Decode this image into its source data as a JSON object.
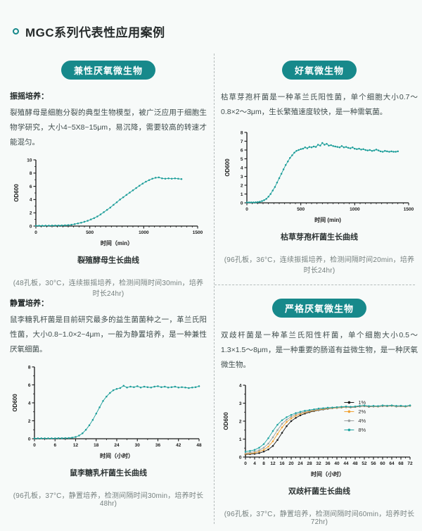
{
  "header": {
    "title": "MGC系列代表性应用案例"
  },
  "colors": {
    "accent": "#17898b",
    "curve_teal": "#1b9d99",
    "series_black": "#1a1a1a",
    "series_orange": "#f0a132",
    "series_gray": "#9aa0a0"
  },
  "quadrants": {
    "q1": {
      "badge": "兼性厌氧微生物",
      "method_label": "振摇培养：",
      "description": "裂殖酵母是细胞分裂的典型生物模型，被广泛应用于细胞生物学研究，大小4~5X8~15μm，易沉降，需要较高的转速才能混匀。",
      "chart_title": "裂殖酵母生长曲线",
      "caption": "(48孔板，30°C，连续振摇培养，检测间隔时间30min，培养时长24hr)"
    },
    "q2": {
      "badge": "好氧微生物",
      "description": "枯草芽孢杆菌是一种革兰氏阳性菌，单个细胞大小0.7～0.8×2～3μm，生长繁殖速度较快，是一种需氧菌。",
      "chart_title": "枯草芽孢杆菌生长曲线",
      "caption": "(96孔板，36°C，连续振摇培养，检测间隔时间20min，培养时长24hr)"
    },
    "q3": {
      "method_label": "静置培养：",
      "description": "鼠李糖乳杆菌是目前研究最多的益生菌菌种之一，革兰氏阳性菌，大小0.8~1.0×2~4μm，一般为静置培养，是一种兼性厌氧细菌。",
      "chart_title": "鼠李糖乳杆菌生长曲线",
      "caption": "(96孔板，37°C，静置培养，检测间隔时间30min，培养时长48hr)"
    },
    "q4": {
      "badge": "严格厌氧微生物",
      "description": "双歧杆菌是一种革兰氏阳性杆菌，单个细胞大小0.5～1.3×1.5～8μm，是一种重要的肠道有益微生物，是一种厌氧微生物。",
      "chart_title": "双歧杆菌生长曲线",
      "caption": "(96孔板，37°C，静置培养，检测间隔时间60min，培养时长72hr)"
    }
  },
  "chart_data": [
    {
      "type": "line",
      "title": "裂殖酵母生长曲线",
      "xlabel": "时间（min）",
      "ylabel": "OD600",
      "xlim": [
        0,
        1500
      ],
      "ylim": [
        0,
        10
      ],
      "xticks": [
        0,
        500,
        1000,
        1500
      ],
      "yticks": [
        0,
        2,
        4,
        6,
        8,
        10
      ],
      "xminor": 50,
      "yminor": 1,
      "x": [
        0,
        30,
        60,
        90,
        120,
        150,
        180,
        210,
        240,
        270,
        300,
        330,
        360,
        390,
        420,
        450,
        480,
        510,
        540,
        570,
        600,
        630,
        660,
        690,
        720,
        750,
        780,
        810,
        840,
        870,
        900,
        930,
        960,
        990,
        1020,
        1050,
        1080,
        1110,
        1140,
        1170,
        1200,
        1230,
        1260,
        1290,
        1320,
        1350
      ],
      "series": [
        {
          "name": "OD600",
          "color": "#1b9d99",
          "values": [
            0.05,
            0.05,
            0.05,
            0.06,
            0.06,
            0.07,
            0.08,
            0.09,
            0.1,
            0.12,
            0.15,
            0.2,
            0.3,
            0.4,
            0.5,
            0.65,
            0.8,
            1.0,
            1.2,
            1.45,
            1.75,
            2.1,
            2.45,
            2.8,
            3.2,
            3.6,
            4.0,
            4.35,
            4.7,
            5.05,
            5.4,
            5.75,
            6.1,
            6.4,
            6.7,
            6.95,
            7.15,
            7.3,
            7.35,
            7.2,
            7.15,
            7.2,
            7.15,
            7.2,
            7.15,
            7.1
          ]
        }
      ]
    },
    {
      "type": "line",
      "title": "枯草芽孢杆菌生长曲线",
      "xlabel": "时间 (min)",
      "ylabel": "OD600",
      "xlim": [
        0,
        1500
      ],
      "ylim": [
        0,
        8
      ],
      "xticks": [
        0,
        500,
        1000,
        1500
      ],
      "yticks": [
        0,
        1,
        2,
        3,
        4,
        5,
        6,
        7,
        8
      ],
      "xminor": 50,
      "yminor": 0,
      "x": [
        0,
        20,
        40,
        60,
        80,
        100,
        120,
        140,
        160,
        180,
        200,
        220,
        240,
        260,
        280,
        300,
        320,
        340,
        360,
        380,
        400,
        420,
        440,
        460,
        480,
        500,
        520,
        540,
        560,
        580,
        600,
        620,
        640,
        660,
        680,
        700,
        720,
        740,
        760,
        780,
        800,
        820,
        840,
        860,
        880,
        900,
        920,
        940,
        960,
        980,
        1000,
        1020,
        1040,
        1060,
        1080,
        1100,
        1120,
        1140,
        1160,
        1180,
        1200,
        1220,
        1240,
        1260,
        1280,
        1300,
        1320,
        1340,
        1360,
        1380,
        1400
      ],
      "series": [
        {
          "name": "OD600",
          "color": "#1b9d99",
          "values": [
            0.05,
            0.05,
            0.05,
            0.05,
            0.06,
            0.08,
            0.12,
            0.2,
            0.3,
            0.45,
            0.7,
            1.0,
            1.4,
            1.8,
            2.3,
            2.8,
            3.3,
            3.8,
            4.3,
            4.7,
            5.1,
            5.4,
            5.7,
            5.9,
            6.0,
            6.1,
            6.15,
            6.3,
            6.2,
            6.35,
            6.3,
            6.4,
            6.35,
            6.6,
            6.5,
            6.8,
            6.6,
            6.7,
            6.5,
            6.55,
            6.45,
            6.4,
            6.35,
            6.3,
            6.45,
            6.3,
            6.35,
            6.25,
            6.2,
            6.3,
            6.15,
            6.1,
            6.15,
            6.05,
            6.1,
            6.0,
            5.95,
            6.0,
            5.9,
            5.95,
            6.05,
            5.95,
            5.85,
            5.8,
            5.9,
            5.85,
            5.8,
            5.85,
            5.8,
            5.8,
            5.85
          ]
        }
      ]
    },
    {
      "type": "line",
      "title": "鼠李糖乳杆菌生长曲线",
      "xlabel": "时间（小时）",
      "ylabel": "OD600",
      "xlim": [
        0,
        48
      ],
      "ylim": [
        0,
        8
      ],
      "xticks": [
        0,
        6,
        12,
        18,
        24,
        30,
        36,
        42,
        48
      ],
      "yticks": [
        0,
        2,
        4,
        6,
        8
      ],
      "xminor": 3,
      "yminor": 1,
      "x": [
        0,
        1,
        2,
        3,
        4,
        5,
        6,
        7,
        8,
        9,
        10,
        11,
        12,
        13,
        14,
        15,
        16,
        17,
        18,
        19,
        20,
        21,
        22,
        23,
        24,
        25,
        26,
        27,
        28,
        29,
        30,
        31,
        32,
        33,
        34,
        35,
        36,
        37,
        38,
        39,
        40,
        41,
        42,
        43,
        44,
        45,
        46,
        47,
        48
      ],
      "series": [
        {
          "name": "OD600",
          "color": "#1b9d99",
          "values": [
            0.05,
            0.05,
            0.05,
            0.05,
            0.05,
            0.05,
            0.05,
            0.06,
            0.06,
            0.07,
            0.08,
            0.12,
            0.2,
            0.35,
            0.6,
            1.0,
            1.5,
            2.1,
            2.8,
            3.5,
            4.2,
            4.7,
            5.1,
            5.4,
            5.55,
            5.65,
            5.9,
            5.7,
            5.8,
            5.75,
            5.85,
            5.7,
            5.8,
            5.75,
            5.7,
            5.8,
            5.85,
            5.75,
            5.8,
            5.7,
            5.75,
            5.8,
            5.7,
            5.75,
            5.7,
            5.65,
            5.7,
            5.75,
            5.85
          ]
        }
      ]
    },
    {
      "type": "line",
      "title": "双歧杆菌生长曲线",
      "xlabel": "时间（小时）",
      "ylabel": "OD600",
      "xlim": [
        0,
        72
      ],
      "ylim": [
        0,
        4
      ],
      "xticks": [
        0,
        4,
        8,
        12,
        16,
        20,
        24,
        28,
        32,
        36,
        40,
        44,
        48,
        52,
        56,
        60,
        64,
        68,
        72
      ],
      "yticks": [
        0,
        1,
        2,
        3,
        4
      ],
      "xminor": 2,
      "yminor": 0.5,
      "legend": {
        "position": "inside-right",
        "fx": 0.6,
        "fy": 0.24
      },
      "x": [
        0,
        2,
        4,
        6,
        8,
        10,
        12,
        14,
        16,
        18,
        20,
        22,
        24,
        26,
        28,
        30,
        32,
        34,
        36,
        38,
        40,
        42,
        44,
        46,
        48,
        50,
        52,
        54,
        56,
        58,
        60,
        62,
        64,
        66,
        68,
        70,
        72
      ],
      "series": [
        {
          "name": "1%",
          "color": "#1a1a1a",
          "values": [
            0.15,
            0.16,
            0.18,
            0.22,
            0.3,
            0.42,
            0.62,
            0.95,
            1.35,
            1.72,
            2.0,
            2.18,
            2.32,
            2.42,
            2.5,
            2.56,
            2.61,
            2.65,
            2.69,
            2.72,
            2.74,
            2.76,
            2.78,
            2.77,
            2.79,
            2.82,
            2.84,
            2.8,
            2.82,
            2.81,
            2.84,
            2.83,
            2.85,
            2.82,
            2.83,
            2.81,
            2.85
          ]
        },
        {
          "name": "2%",
          "color": "#f0a132",
          "values": [
            0.18,
            0.2,
            0.24,
            0.3,
            0.4,
            0.58,
            0.88,
            1.28,
            1.65,
            1.95,
            2.15,
            2.3,
            2.4,
            2.48,
            2.54,
            2.59,
            2.63,
            2.67,
            2.71,
            2.73,
            2.75,
            2.77,
            2.79,
            2.78,
            2.8,
            2.83,
            2.85,
            2.81,
            2.83,
            2.82,
            2.85,
            2.84,
            2.86,
            2.83,
            2.84,
            2.82,
            2.86
          ]
        },
        {
          "name": "4%",
          "color": "#9aa0a0",
          "values": [
            0.22,
            0.25,
            0.3,
            0.38,
            0.52,
            0.75,
            1.1,
            1.5,
            1.85,
            2.08,
            2.25,
            2.38,
            2.46,
            2.52,
            2.58,
            2.62,
            2.66,
            2.7,
            2.73,
            2.75,
            2.77,
            2.79,
            2.8,
            2.79,
            2.81,
            2.84,
            2.86,
            2.82,
            2.84,
            2.83,
            2.86,
            2.85,
            2.87,
            2.84,
            2.85,
            2.83,
            2.87
          ]
        },
        {
          "name": "8%",
          "color": "#1fa3a0",
          "values": [
            0.3,
            0.34,
            0.4,
            0.52,
            0.72,
            1.05,
            1.45,
            1.8,
            2.05,
            2.22,
            2.35,
            2.45,
            2.52,
            2.58,
            2.62,
            2.66,
            2.7,
            2.72,
            2.75,
            2.76,
            2.78,
            2.8,
            2.82,
            2.8,
            2.82,
            2.85,
            2.88,
            2.84,
            2.85,
            2.84,
            2.88,
            2.86,
            2.88,
            2.85,
            2.86,
            2.84,
            2.88
          ]
        }
      ]
    }
  ]
}
